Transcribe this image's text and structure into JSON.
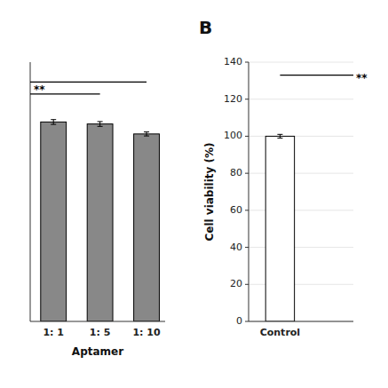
{
  "chart_data": [
    {
      "type": "bar",
      "categories": [
        "1: 1",
        "1: 5",
        "1: 10"
      ],
      "values": [
        100,
        99,
        94
      ],
      "errors": [
        1.2,
        1.2,
        1.0
      ],
      "colors": [
        "#888888",
        "#888888",
        "#888888"
      ],
      "x_label": "Aptamer",
      "xlim": [
        -0.5,
        2.4
      ],
      "ylim": [
        0,
        130
      ],
      "tick_labels": "x",
      "annotations": [
        {
          "label": "**",
          "x1": -0.5,
          "x2": 1.0,
          "y": 114
        },
        {
          "x1": -0.5,
          "x2": 2.0,
          "y": 120
        }
      ]
    },
    {
      "type": "bar",
      "title": "B",
      "categories": [
        "Control"
      ],
      "values": [
        100
      ],
      "errors": [
        1.0
      ],
      "color": "#ffffff",
      "y_label": "Cell viability (%)",
      "xlim": [
        -0.6,
        1.4
      ],
      "ylim": [
        0,
        140
      ],
      "yticks": [
        0,
        20,
        40,
        60,
        80,
        100,
        120,
        140
      ],
      "annotations": [
        {
          "label": "**",
          "x1": 0.0,
          "x2": 1.4,
          "y": 133
        }
      ]
    }
  ]
}
